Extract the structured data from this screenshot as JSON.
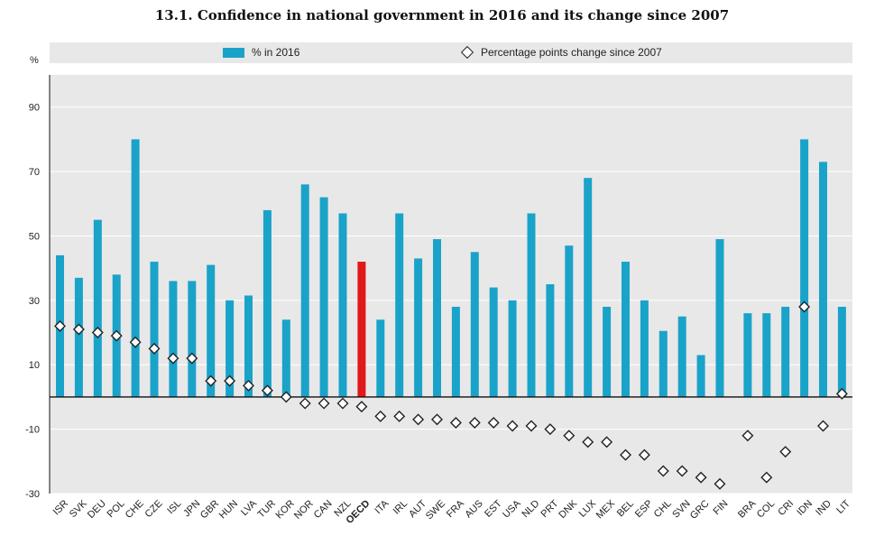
{
  "title": "13.1. Confidence in national government in 2016 and its change since 2007",
  "legend": {
    "bar_label": "% in 2016",
    "marker_label": "Percentage points change since 2007"
  },
  "y_unit": "%",
  "colors": {
    "bar": "#1aa3c9",
    "highlight": "#e0191b",
    "plot_bg": "#e8e8e8",
    "marker_stroke": "#222222"
  },
  "chart_data": {
    "type": "bar",
    "title": "13.1. Confidence in national government in 2016 and its change since 2007",
    "ylabel": "%",
    "ylim": [
      -30,
      100
    ],
    "yticks": [
      -30,
      -10,
      10,
      30,
      50,
      70,
      90
    ],
    "grid": "horizontal",
    "legend_position": "top",
    "categories": [
      "ISR",
      "SVK",
      "DEU",
      "POL",
      "CHE",
      "CZE",
      "ISL",
      "JPN",
      "GBR",
      "HUN",
      "LVA",
      "TUR",
      "KOR",
      "NOR",
      "CAN",
      "NZL",
      "OECD",
      "ITA",
      "IRL",
      "AUT",
      "SWE",
      "FRA",
      "AUS",
      "EST",
      "USA",
      "NLD",
      "PRT",
      "DNK",
      "LUX",
      "MEX",
      "BEL",
      "ESP",
      "CHL",
      "SVN",
      "GRC",
      "FIN",
      "BRA",
      "COL",
      "CRI",
      "IDN",
      "IND",
      "LIT"
    ],
    "highlight_category": "OECD",
    "series": [
      {
        "name": "% in 2016",
        "values": [
          44,
          37,
          55,
          38,
          80,
          42,
          36,
          36,
          41,
          30,
          31.5,
          58,
          24,
          66,
          62,
          57,
          42,
          24,
          57,
          43,
          49,
          28,
          45,
          34,
          30,
          57,
          35,
          47,
          68,
          28,
          42,
          30,
          20.5,
          25,
          13,
          49,
          26,
          26,
          28,
          80,
          73,
          28
        ]
      },
      {
        "name": "Percentage points change since 2007",
        "values": [
          22,
          21,
          20,
          19,
          17,
          15,
          12,
          12,
          5,
          5,
          3.5,
          2,
          0,
          -2,
          -2,
          -2,
          -3,
          -6,
          -6,
          -7,
          -7,
          -8,
          -8,
          -8,
          -9,
          -9,
          -10,
          -12,
          -14,
          -14,
          -18,
          -18,
          -23,
          -23,
          -25,
          -27,
          -12,
          -25,
          -17,
          28,
          -9,
          1
        ]
      }
    ]
  }
}
